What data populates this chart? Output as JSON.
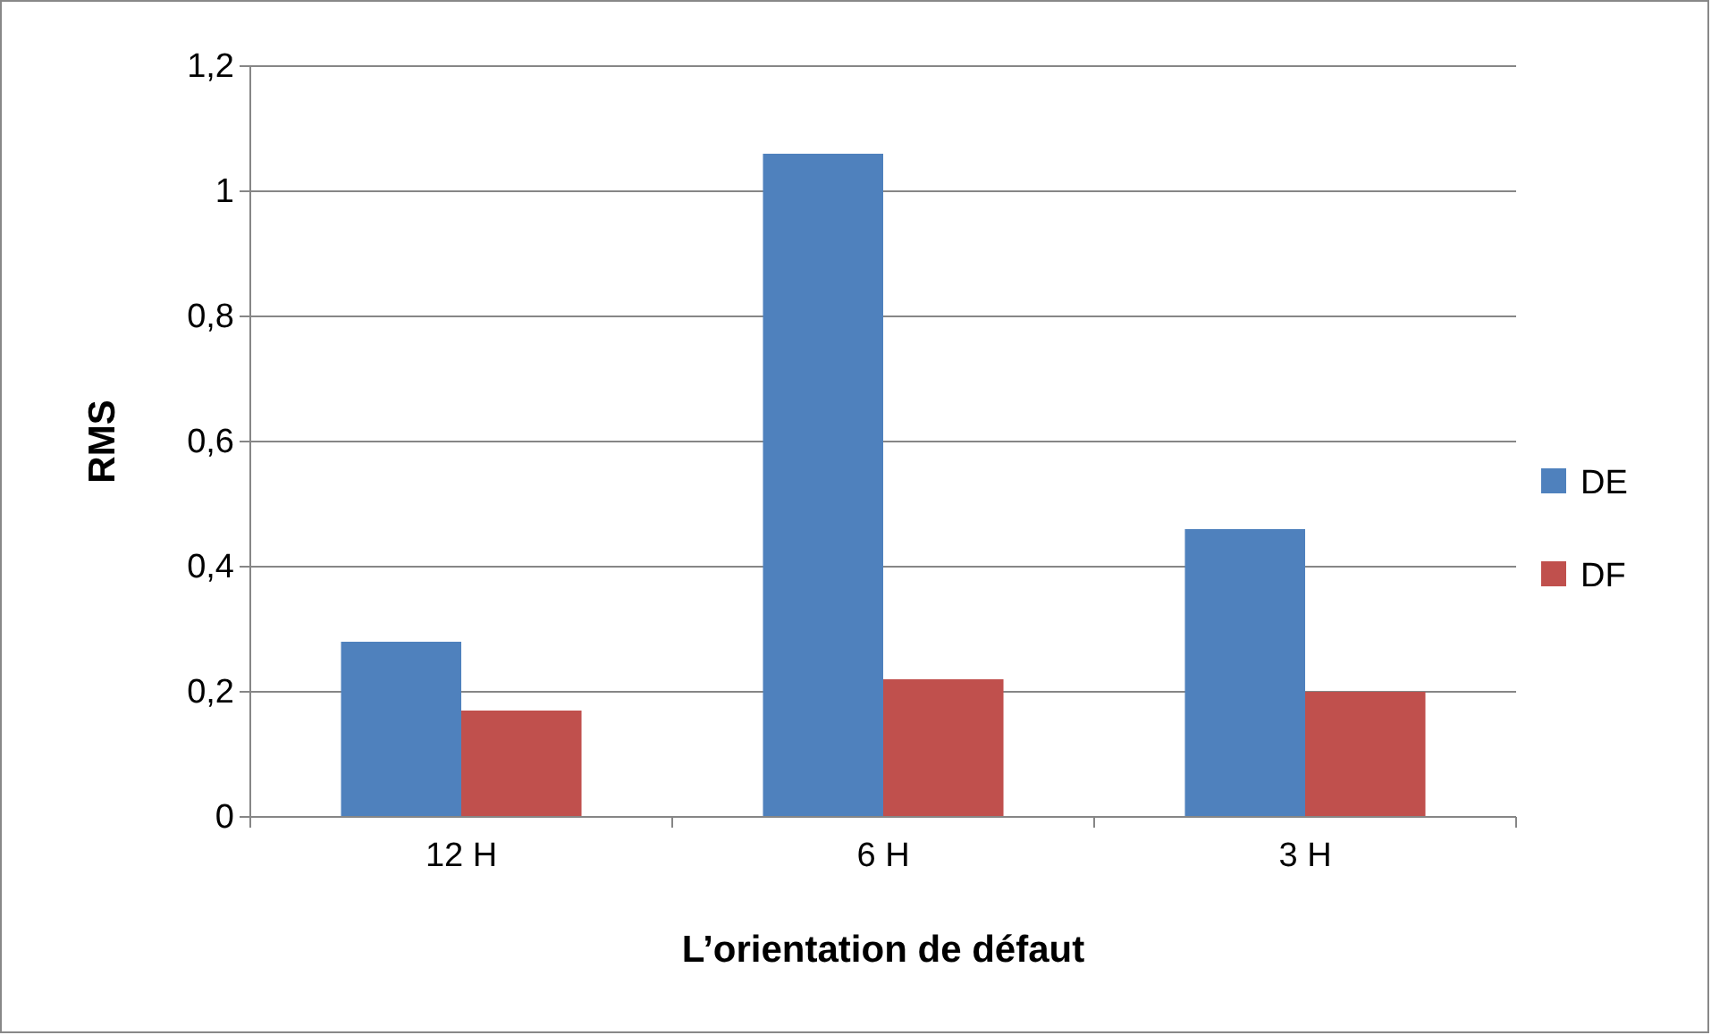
{
  "chart_data": {
    "type": "bar",
    "xlabel": "L’orientation de défaut",
    "ylabel": "RMS",
    "categories": [
      "12 H",
      "6 H",
      "3 H"
    ],
    "series": [
      {
        "name": "DE",
        "color": "#4f81bd",
        "values": [
          0.28,
          1.06,
          0.46
        ]
      },
      {
        "name": "DF",
        "color": "#c0504d",
        "values": [
          0.17,
          0.22,
          0.2
        ]
      }
    ],
    "ylim": [
      0,
      1.2
    ],
    "yticks": [
      {
        "value": 0,
        "label": "0"
      },
      {
        "value": 0.2,
        "label": "0,2"
      },
      {
        "value": 0.4,
        "label": "0,4"
      },
      {
        "value": 0.6,
        "label": "0,6"
      },
      {
        "value": 0.8,
        "label": "0,8"
      },
      {
        "value": 1,
        "label": "1"
      },
      {
        "value": 1.2,
        "label": "1,2"
      }
    ],
    "grid": "y",
    "legend": "right"
  }
}
